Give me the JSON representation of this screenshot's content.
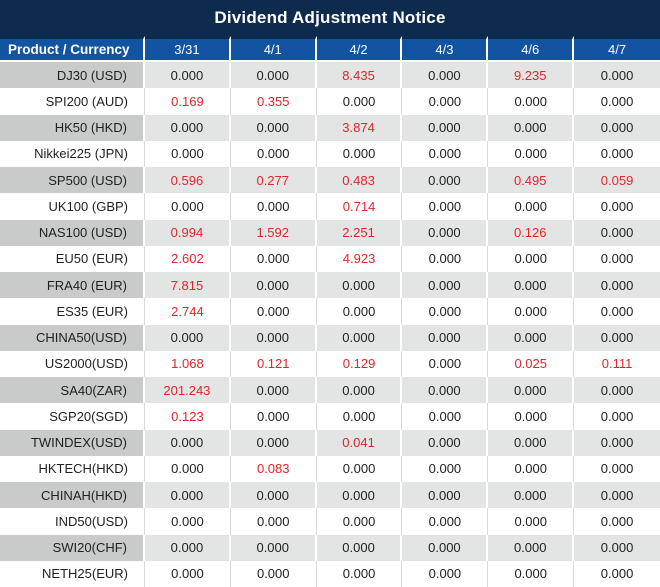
{
  "title": "Dividend Adjustment Notice",
  "colors": {
    "navy": "#0e2b4e",
    "blue": "#1254a2",
    "row-gray": "#e3e4e4",
    "row-gray-label": "#c9cbcb",
    "row-white": "#ffffff",
    "red": "#e0262c",
    "text": "#1f1f1f",
    "divider-light": "#d9d9d9"
  },
  "chart_data": {
    "type": "table",
    "title": "Dividend Adjustment Notice",
    "columns": [
      "Product / Currency",
      "3/31",
      "4/1",
      "4/2",
      "4/3",
      "4/6",
      "4/7"
    ],
    "rows": [
      {
        "product": "DJ30 (USD)",
        "values": [
          "0.000",
          "0.000",
          "8.435",
          "0.000",
          "9.235",
          "0.000"
        ],
        "red": [
          0,
          0,
          1,
          0,
          1,
          0
        ]
      },
      {
        "product": "SPI200 (AUD)",
        "values": [
          "0.169",
          "0.355",
          "0.000",
          "0.000",
          "0.000",
          "0.000"
        ],
        "red": [
          1,
          1,
          0,
          0,
          0,
          0
        ]
      },
      {
        "product": "HK50 (HKD)",
        "values": [
          "0.000",
          "0.000",
          "3.874",
          "0.000",
          "0.000",
          "0.000"
        ],
        "red": [
          0,
          0,
          1,
          0,
          0,
          0
        ]
      },
      {
        "product": "Nikkei225 (JPN)",
        "values": [
          "0.000",
          "0.000",
          "0.000",
          "0.000",
          "0.000",
          "0.000"
        ],
        "red": [
          0,
          0,
          0,
          0,
          0,
          0
        ]
      },
      {
        "product": "SP500 (USD)",
        "values": [
          "0.596",
          "0.277",
          "0.483",
          "0.000",
          "0.495",
          "0.059"
        ],
        "red": [
          1,
          1,
          1,
          0,
          1,
          1
        ]
      },
      {
        "product": "UK100 (GBP)",
        "values": [
          "0.000",
          "0.000",
          "0.714",
          "0.000",
          "0.000",
          "0.000"
        ],
        "red": [
          0,
          0,
          1,
          0,
          0,
          0
        ]
      },
      {
        "product": "NAS100 (USD)",
        "values": [
          "0.994",
          "1.592",
          "2.251",
          "0.000",
          "0.126",
          "0.000"
        ],
        "red": [
          1,
          1,
          1,
          0,
          1,
          0
        ]
      },
      {
        "product": "EU50 (EUR)",
        "values": [
          "2.602",
          "0.000",
          "4.923",
          "0.000",
          "0.000",
          "0.000"
        ],
        "red": [
          1,
          0,
          1,
          0,
          0,
          0
        ]
      },
      {
        "product": "FRA40 (EUR)",
        "values": [
          "7.815",
          "0.000",
          "0.000",
          "0.000",
          "0.000",
          "0.000"
        ],
        "red": [
          1,
          0,
          0,
          0,
          0,
          0
        ]
      },
      {
        "product": "ES35 (EUR)",
        "values": [
          "2.744",
          "0.000",
          "0.000",
          "0.000",
          "0.000",
          "0.000"
        ],
        "red": [
          1,
          0,
          0,
          0,
          0,
          0
        ]
      },
      {
        "product": "CHINA50(USD)",
        "values": [
          "0.000",
          "0.000",
          "0.000",
          "0.000",
          "0.000",
          "0.000"
        ],
        "red": [
          0,
          0,
          0,
          0,
          0,
          0
        ]
      },
      {
        "product": "US2000(USD)",
        "values": [
          "1.068",
          "0.121",
          "0.129",
          "0.000",
          "0.025",
          "0.111"
        ],
        "red": [
          1,
          1,
          1,
          0,
          1,
          1
        ]
      },
      {
        "product": "SA40(ZAR)",
        "values": [
          "201.243",
          "0.000",
          "0.000",
          "0.000",
          "0.000",
          "0.000"
        ],
        "red": [
          1,
          0,
          0,
          0,
          0,
          0
        ]
      },
      {
        "product": "SGP20(SGD)",
        "values": [
          "0.123",
          "0.000",
          "0.000",
          "0.000",
          "0.000",
          "0.000"
        ],
        "red": [
          1,
          0,
          0,
          0,
          0,
          0
        ]
      },
      {
        "product": "TWINDEX(USD)",
        "values": [
          "0.000",
          "0.000",
          "0.041",
          "0.000",
          "0.000",
          "0.000"
        ],
        "red": [
          0,
          0,
          1,
          0,
          0,
          0
        ]
      },
      {
        "product": "HKTECH(HKD)",
        "values": [
          "0.000",
          "0.083",
          "0.000",
          "0.000",
          "0.000",
          "0.000"
        ],
        "red": [
          0,
          1,
          0,
          0,
          0,
          0
        ]
      },
      {
        "product": "CHINAH(HKD)",
        "values": [
          "0.000",
          "0.000",
          "0.000",
          "0.000",
          "0.000",
          "0.000"
        ],
        "red": [
          0,
          0,
          0,
          0,
          0,
          0
        ]
      },
      {
        "product": "IND50(USD)",
        "values": [
          "0.000",
          "0.000",
          "0.000",
          "0.000",
          "0.000",
          "0.000"
        ],
        "red": [
          0,
          0,
          0,
          0,
          0,
          0
        ]
      },
      {
        "product": "SWI20(CHF)",
        "values": [
          "0.000",
          "0.000",
          "0.000",
          "0.000",
          "0.000",
          "0.000"
        ],
        "red": [
          0,
          0,
          0,
          0,
          0,
          0
        ]
      },
      {
        "product": "NETH25(EUR)",
        "values": [
          "0.000",
          "0.000",
          "0.000",
          "0.000",
          "0.000",
          "0.000"
        ],
        "red": [
          0,
          0,
          0,
          0,
          0,
          0
        ]
      }
    ]
  }
}
